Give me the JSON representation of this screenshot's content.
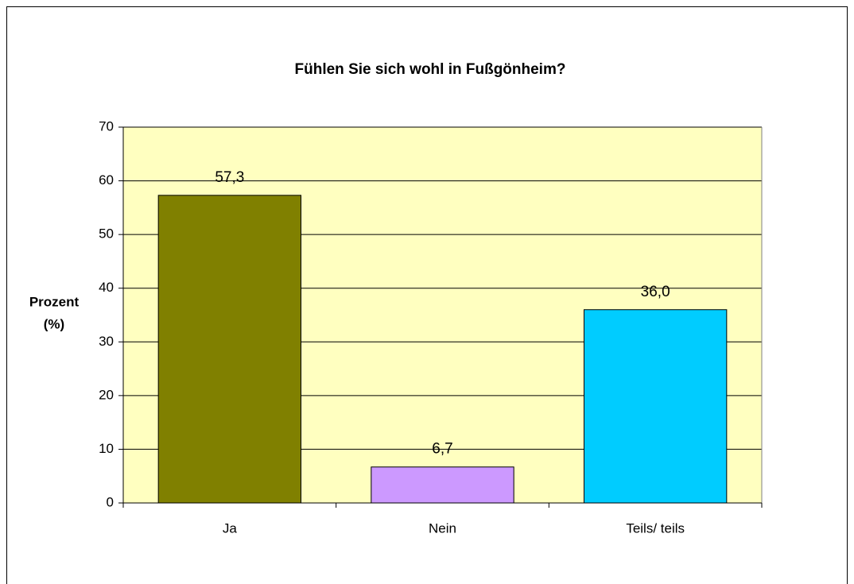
{
  "chart_data": {
    "type": "bar",
    "title": "Fühlen Sie sich wohl in Fußgönheim?",
    "ylabel": [
      "Prozent",
      "(%)"
    ],
    "categories": [
      "Ja",
      "Nein",
      "Teils/ teils"
    ],
    "values": [
      57.3,
      6.7,
      36.0
    ],
    "value_labels": [
      "57,3",
      "6,7",
      "36,0"
    ],
    "colors": [
      "#808000",
      "#cc99ff",
      "#00ccff"
    ],
    "ylim": [
      0,
      70
    ],
    "yticks": [
      0,
      10,
      20,
      30,
      40,
      50,
      60,
      70
    ],
    "grid": true,
    "plot_background": "#ffffc0"
  }
}
